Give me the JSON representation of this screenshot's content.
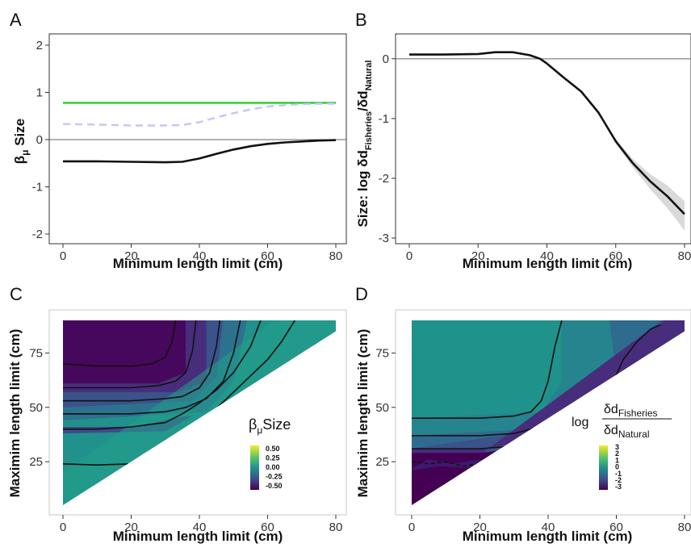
{
  "panels": {
    "A": {
      "letter": "A",
      "xlabel": "Minimum length limit (cm)",
      "ylabel_main": "β",
      "ylabel_sub": "μ",
      "ylabel_rest": " Size"
    },
    "B": {
      "letter": "B",
      "xlabel": "Minimum length limit (cm)",
      "ylabel_pre": "Size: log ",
      "ylabel_num": "δd",
      "ylabel_num_sub": "Fisheries",
      "ylabel_slash": "/",
      "ylabel_den": "δd",
      "ylabel_den_sub": "Natural"
    },
    "C": {
      "letter": "C",
      "xlabel": "Minimum length limit (cm)",
      "ylabel": "Maximim length limit (cm)",
      "legend_title_main": "β",
      "legend_title_sub": "μ",
      "legend_title_rest": "Size",
      "legend_ticks": [
        "0.50",
        "0.25",
        "0.00",
        "-0.25",
        "-0.50"
      ]
    },
    "D": {
      "letter": "D",
      "xlabel": "Minimum length limit (cm)",
      "ylabel": "Maximim length limit (cm)",
      "legend_log": "log",
      "legend_num": "δd",
      "legend_num_sub": "Fisheries",
      "legend_den": "δd",
      "legend_den_sub": "Natural",
      "legend_ticks": [
        "3",
        "2",
        "1",
        "0",
        "-1",
        "-2",
        "-3"
      ]
    }
  },
  "colors": {
    "green": "#1fd11f",
    "lavender": "#c8c4f8",
    "black": "#111111",
    "ref": "#666666",
    "viridis": [
      "#440154",
      "#3b528b",
      "#21918c",
      "#5ec962",
      "#fde725"
    ]
  },
  "chart_data": [
    {
      "panel": "A",
      "type": "line",
      "xlim": [
        0,
        80
      ],
      "ylim": [
        -2,
        2
      ],
      "xticks": [
        0,
        20,
        40,
        60,
        80
      ],
      "yticks": [
        -2,
        -1,
        0,
        1,
        2
      ],
      "hline": 0,
      "series": [
        {
          "color": "green",
          "style": "solid",
          "x": [
            0,
            80
          ],
          "y": [
            0.78,
            0.78
          ]
        },
        {
          "color": "lavender",
          "style": "dashed",
          "x": [
            0,
            10,
            20,
            30,
            35,
            40,
            45,
            50,
            55,
            60,
            65,
            70,
            75,
            80
          ],
          "y": [
            0.33,
            0.32,
            0.3,
            0.3,
            0.31,
            0.37,
            0.47,
            0.56,
            0.64,
            0.7,
            0.73,
            0.75,
            0.76,
            0.76
          ]
        },
        {
          "color": "black",
          "style": "solid",
          "x": [
            0,
            10,
            20,
            30,
            35,
            40,
            45,
            50,
            55,
            60,
            65,
            70,
            75,
            80
          ],
          "y": [
            -0.46,
            -0.46,
            -0.47,
            -0.48,
            -0.47,
            -0.4,
            -0.3,
            -0.21,
            -0.14,
            -0.09,
            -0.06,
            -0.04,
            -0.02,
            -0.01
          ]
        }
      ]
    },
    {
      "panel": "B",
      "type": "line",
      "xlim": [
        0,
        80
      ],
      "ylim": [
        -3,
        0.2
      ],
      "xticks": [
        0,
        20,
        40,
        60,
        80
      ],
      "yticks": [
        -3,
        -2,
        -1,
        0
      ],
      "hline": 0,
      "series": [
        {
          "color": "black",
          "style": "solid",
          "x": [
            0,
            10,
            20,
            25,
            30,
            35,
            38,
            40,
            45,
            50,
            55,
            60,
            65,
            70,
            75,
            78,
            80
          ],
          "y": [
            0.07,
            0.07,
            0.08,
            0.11,
            0.11,
            0.06,
            0.0,
            -0.08,
            -0.32,
            -0.55,
            -0.9,
            -1.38,
            -1.75,
            -2.05,
            -2.3,
            -2.48,
            -2.6
          ],
          "band_lo": [
            0.07,
            0.07,
            0.08,
            0.11,
            0.11,
            0.06,
            0.0,
            -0.08,
            -0.32,
            -0.55,
            -0.92,
            -1.42,
            -1.82,
            -2.18,
            -2.5,
            -2.72,
            -2.88
          ],
          "band_hi": [
            0.07,
            0.07,
            0.08,
            0.11,
            0.11,
            0.06,
            0.0,
            -0.08,
            -0.32,
            -0.55,
            -0.88,
            -1.34,
            -1.68,
            -1.93,
            -2.12,
            -2.28,
            -2.38
          ]
        }
      ]
    },
    {
      "panel": "C",
      "type": "heatmap",
      "xlim": [
        0,
        80
      ],
      "ylim": [
        5,
        90
      ],
      "xticks": [
        0,
        20,
        40,
        60,
        80
      ],
      "yticks": [
        25,
        50,
        75
      ],
      "color_range": [
        -0.5,
        0.5
      ],
      "contours": [
        {
          "level": "c1",
          "x": [
            0,
            10,
            20,
            28,
            32,
            36,
            40,
            44,
            48,
            52,
            56,
            60,
            64,
            68
          ],
          "y": [
            24,
            23.5,
            24,
            26,
            30,
            36,
            42,
            48,
            54,
            60,
            66,
            72,
            80,
            90
          ]
        },
        {
          "level": "c2",
          "x": [
            0,
            10,
            20,
            30,
            35,
            40,
            45,
            50,
            55,
            58
          ],
          "y": [
            40,
            40,
            41,
            43,
            47,
            52,
            58,
            66,
            78,
            90
          ]
        },
        {
          "level": "c3",
          "x": [
            0,
            10,
            20,
            30,
            36,
            42,
            47,
            50,
            52
          ],
          "y": [
            47,
            47,
            47,
            48,
            50,
            54,
            62,
            75,
            90
          ]
        },
        {
          "level": "c4",
          "x": [
            0,
            10,
            20,
            30,
            35,
            40,
            43,
            45,
            46
          ],
          "y": [
            53,
            53,
            53,
            54,
            55,
            59,
            66,
            78,
            90
          ]
        },
        {
          "level": "c5",
          "x": [
            0,
            10,
            20,
            28,
            33,
            36,
            38,
            39
          ],
          "y": [
            59,
            59,
            59,
            60,
            62,
            66,
            76,
            90
          ]
        },
        {
          "level": "c6",
          "x": [
            0,
            10,
            20,
            26,
            30,
            32,
            33
          ],
          "y": [
            70,
            69,
            69,
            70,
            73,
            80,
            90
          ]
        }
      ]
    },
    {
      "panel": "D",
      "type": "heatmap",
      "xlim": [
        0,
        80
      ],
      "ylim": [
        5,
        90
      ],
      "xticks": [
        0,
        20,
        40,
        60,
        80
      ],
      "yticks": [
        25,
        50,
        75
      ],
      "color_range": [
        -3,
        3
      ],
      "contours": [
        {
          "level": "c1",
          "x": [
            0,
            10,
            20,
            30,
            35,
            38,
            40,
            42,
            44
          ],
          "y": [
            45,
            45,
            45,
            46,
            48,
            53,
            62,
            78,
            90
          ]
        },
        {
          "level": "c2",
          "x": [
            0,
            10,
            20,
            30,
            35,
            45,
            50,
            55,
            58,
            60,
            62,
            66,
            70,
            73
          ],
          "y": [
            37,
            37,
            37,
            38,
            40,
            45,
            50,
            55,
            58,
            65,
            72,
            80,
            86,
            88
          ]
        },
        {
          "level": "c3",
          "x": [
            0,
            10,
            20,
            28,
            35
          ],
          "y": [
            31,
            31,
            31,
            32,
            34
          ]
        },
        {
          "level": "c4",
          "x": [
            0,
            5,
            10,
            15,
            20,
            25
          ],
          "y": [
            25,
            24,
            25,
            23,
            24,
            24
          ]
        }
      ]
    }
  ]
}
